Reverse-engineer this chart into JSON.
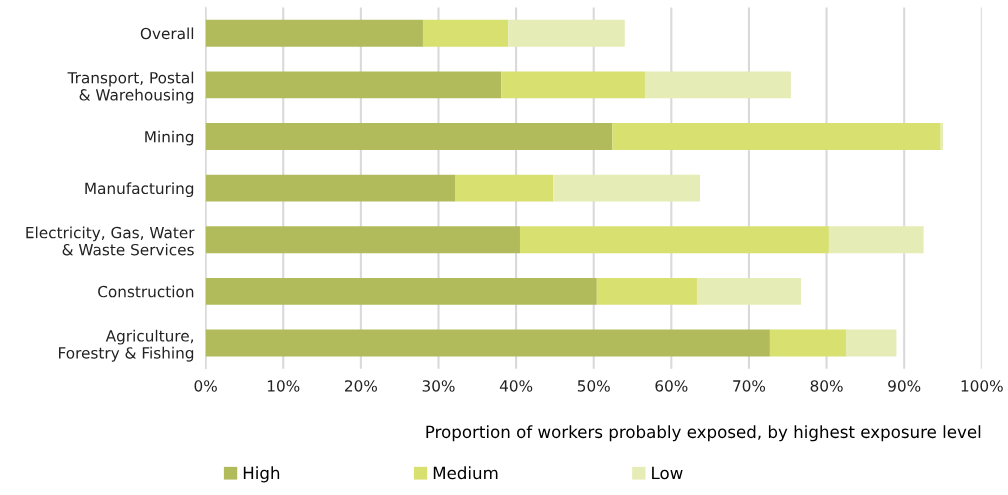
{
  "chart_data": {
    "type": "bar",
    "orientation": "horizontal",
    "stacked": true,
    "categories": [
      "Overall",
      "Transport, Postal\n& Warehousing",
      "Mining",
      "Manufacturing",
      "Electricity, Gas, Water\n& Waste Services",
      "Construction",
      "Agriculture,\nForestry & Fishing"
    ],
    "series": [
      {
        "name": "High",
        "color": "#b2bb5c",
        "values": [
          28,
          38.1,
          52.4,
          32.2,
          40.5,
          50.4,
          72.7
        ]
      },
      {
        "name": "Medium",
        "color": "#d8e06f",
        "values": [
          11,
          18.5,
          42.3,
          12.6,
          39.8,
          12.9,
          9.8
        ]
      },
      {
        "name": "Low",
        "color": "#e6ecb5",
        "values": [
          15,
          18.8,
          0.3,
          18.9,
          12.2,
          13.4,
          6.5
        ]
      }
    ],
    "xlabel": "Proportion of workers probably exposed, by highest exposure level",
    "xlim": [
      0,
      100
    ],
    "xticks": [
      {
        "value": 0,
        "label": "0%"
      },
      {
        "value": 10,
        "label": "10%"
      },
      {
        "value": 20,
        "label": "20%"
      },
      {
        "value": 30,
        "label": "30%"
      },
      {
        "value": 40,
        "label": "40%"
      },
      {
        "value": 50,
        "label": "50%"
      },
      {
        "value": 60,
        "label": "60%"
      },
      {
        "value": 70,
        "label": "70%"
      },
      {
        "value": 80,
        "label": "80%"
      },
      {
        "value": 90,
        "label": "90%"
      },
      {
        "value": 100,
        "label": "100%"
      }
    ],
    "grid": "x",
    "legend": "bottom"
  }
}
